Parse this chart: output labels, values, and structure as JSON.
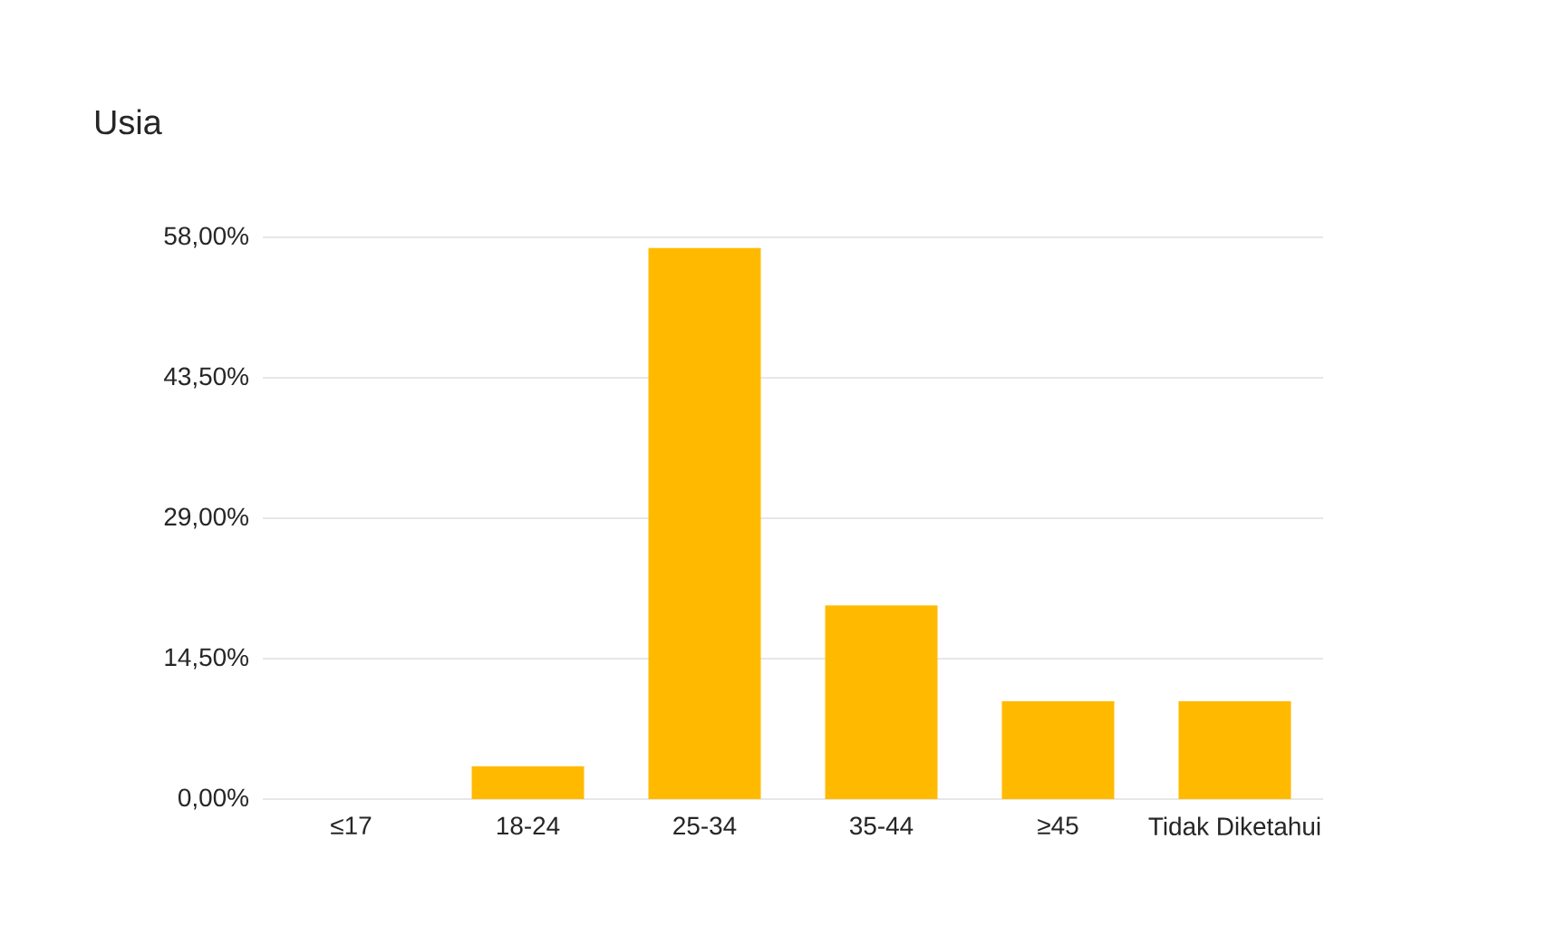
{
  "chart_data": {
    "type": "bar",
    "title": "Usia",
    "categories": [
      "≤17",
      "18-24",
      "25-34",
      "35-44",
      "≥45",
      "Tidak Diketahui"
    ],
    "values": [
      0,
      3.4,
      56.9,
      20.0,
      10.1,
      10.1
    ],
    "color": "#ffba00",
    "ylim": [
      0,
      58
    ],
    "yticks": [
      {
        "value": 0,
        "label": "0,00%"
      },
      {
        "value": 14.5,
        "label": "14,50%"
      },
      {
        "value": 29,
        "label": "29,00%"
      },
      {
        "value": 43.5,
        "label": "43,50%"
      },
      {
        "value": 58,
        "label": "58,00%"
      }
    ],
    "grid": "y"
  }
}
